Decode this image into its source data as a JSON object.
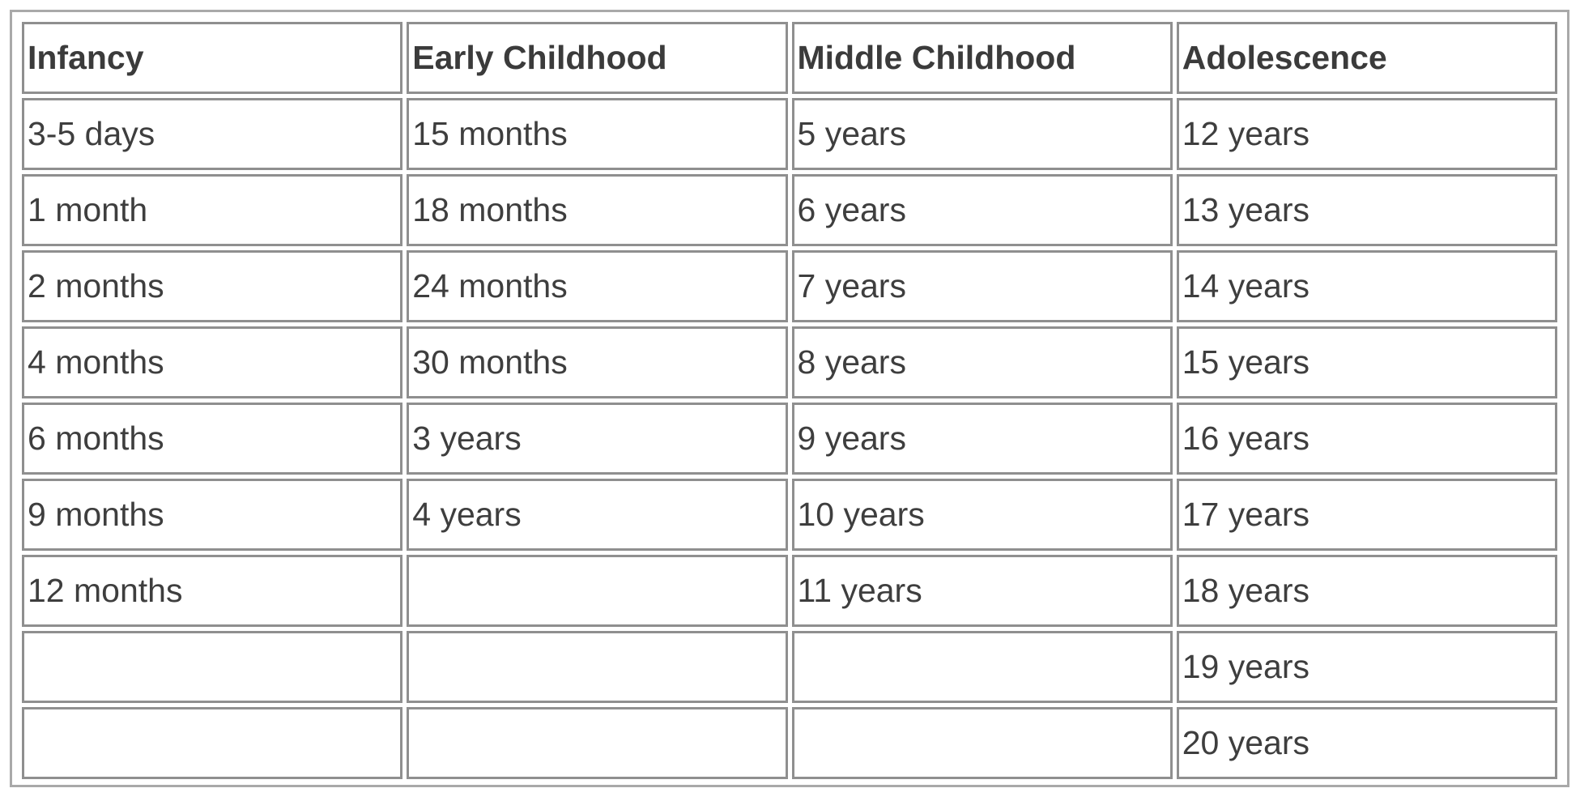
{
  "table": {
    "headers": [
      "Infancy",
      "Early Childhood",
      "Middle Childhood",
      "Adolescence"
    ],
    "rows": [
      [
        "3-5 days",
        "15 months",
        "5 years",
        "12 years"
      ],
      [
        "1 month",
        "18 months",
        "6 years",
        "13 years"
      ],
      [
        "2 months",
        "24 months",
        "7 years",
        "14 years"
      ],
      [
        "4 months",
        "30 months",
        "8 years",
        "15 years"
      ],
      [
        "6 months",
        "3 years",
        "9 years",
        "16 years"
      ],
      [
        "9 months",
        "4 years",
        "10 years",
        "17 years"
      ],
      [
        "12 months",
        "",
        "11 years",
        "18 years"
      ],
      [
        "",
        "",
        "",
        "19 years"
      ],
      [
        "",
        "",
        "",
        "20 years"
      ]
    ]
  }
}
